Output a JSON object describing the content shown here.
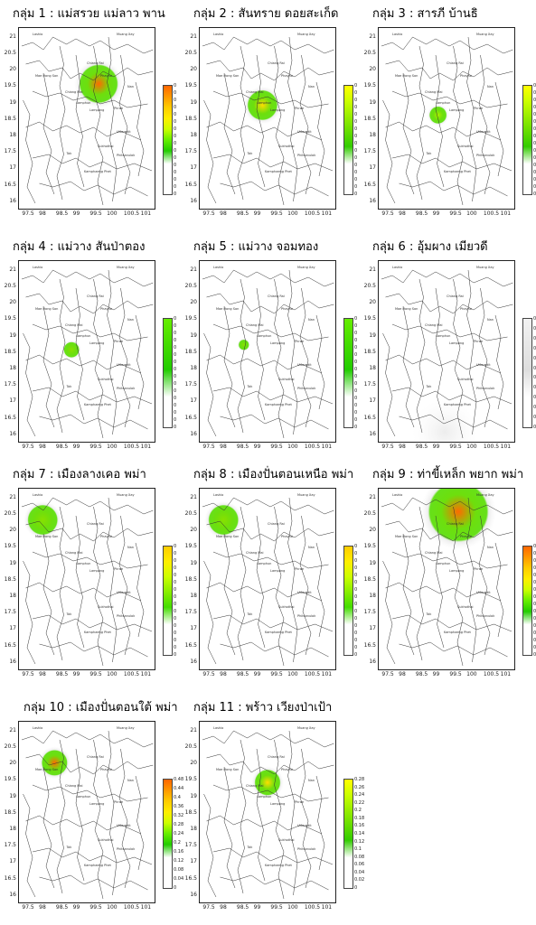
{
  "map_data": {
    "x_ticks": [
      "97.5",
      "98",
      "98.5",
      "99",
      "99.5",
      "100",
      "100.5",
      "101"
    ],
    "y_ticks": [
      "21",
      "20.5",
      "20",
      "19.5",
      "19",
      "18.5",
      "18",
      "17.5",
      "17",
      "16.5",
      "16"
    ],
    "x_range": [
      97.25,
      101.25
    ],
    "y_range": [
      15.8,
      21.3
    ],
    "place_names": [
      "Lashio",
      "Muang Xay",
      "Chiang Rai",
      "Phayao",
      "Nan",
      "Lampang",
      "Phrae",
      "Uttaradit",
      "Sukhothai",
      "Tak",
      "Kamphaeng Phet",
      "Phitsanulok",
      "Mae Hong Son",
      "Chiang Mai",
      "Lamphun"
    ],
    "panels": [
      {
        "title": "กลุ่ม 1 : แม่สรวย แม่ลาว พาน",
        "hotspot": {
          "lon": 99.6,
          "lat": 19.6,
          "radius_deg": 0.45
        },
        "peak": "orange",
        "cbar_colors": [
          "#ff6600",
          "#ff9900",
          "#ffcc00",
          "#ffee00",
          "#ccff00",
          "#66ee00",
          "#22cc00"
        ],
        "cbar_labels": [
          "0",
          "0",
          "0",
          "0",
          "0",
          "0",
          "0",
          "0",
          "0",
          "0",
          "0",
          "0",
          "0",
          "0",
          "0",
          "0"
        ]
      },
      {
        "title": "กลุ่ม 2 : สันทราย ดอยสะเก็ด",
        "hotspot": {
          "lon": 99.1,
          "lat": 18.95,
          "radius_deg": 0.35
        },
        "peak": "yellow",
        "cbar_colors": [
          "#ffff00",
          "#ccff00",
          "#99ee00",
          "#66dd00",
          "#33cc00"
        ],
        "cbar_labels": [
          "0",
          "0",
          "0",
          "0",
          "0",
          "0",
          "0",
          "0",
          "0",
          "0",
          "0",
          "0",
          "0",
          "0",
          "0",
          "0"
        ]
      },
      {
        "title": "กลุ่ม 3 : สารภี บ้านธิ",
        "hotspot": {
          "lon": 99.0,
          "lat": 18.65,
          "radius_deg": 0.2
        },
        "peak": "lime",
        "cbar_colors": [
          "#ffff00",
          "#ccff00",
          "#99ee00",
          "#66dd00",
          "#33cc00"
        ],
        "cbar_labels": [
          "0",
          "0",
          "0",
          "0",
          "0",
          "0",
          "0",
          "0",
          "0",
          "0",
          "0",
          "0",
          "0",
          "0",
          "0",
          "0"
        ]
      },
      {
        "title": "กลุ่ม 4 : แม่วาง สันป่าตอง",
        "hotspot": {
          "lon": 98.8,
          "lat": 18.6,
          "radius_deg": 0.18
        },
        "peak": "green",
        "cbar_colors": [
          "#66ee00",
          "#44dd00",
          "#22cc00"
        ],
        "cbar_labels": [
          "0",
          "0",
          "0",
          "0",
          "0",
          "0",
          "0",
          "0",
          "0",
          "0",
          "0",
          "0",
          "0",
          "0",
          "0",
          "0"
        ]
      },
      {
        "title": "กลุ่ม 5 : แม่วาง จอมทอง",
        "hotspot": {
          "lon": 98.55,
          "lat": 18.75,
          "radius_deg": 0.12
        },
        "peak": "green",
        "cbar_colors": [
          "#66ee00",
          "#44dd00",
          "#22cc00"
        ],
        "cbar_labels": [
          "0",
          "0",
          "0",
          "0",
          "0",
          "0",
          "0",
          "0",
          "0",
          "0",
          "0",
          "0",
          "0",
          "0",
          "0",
          "0"
        ]
      },
      {
        "title": "กลุ่ม 6 : อุ้มผาง เมียวดี",
        "hotspot": {
          "lon": 99.2,
          "lat": 16.1,
          "radius_deg": 0.6
        },
        "peak": "none",
        "cbar_colors": [
          "#f2f2f2",
          "#e8e8e8",
          "#dddddd"
        ],
        "cbar_labels": [
          "0.0",
          "0.0",
          "0.0",
          "0.0",
          "0.0",
          "0.0",
          "0.0",
          "0.0",
          "0.0",
          "0.0",
          "0.0",
          "0.0"
        ]
      },
      {
        "title": "กลุ่ม 7 : เมืองลางเคอ พม่า",
        "hotspot": {
          "lon": 97.95,
          "lat": 20.35,
          "radius_deg": 0.35
        },
        "peak": "green",
        "cbar_colors": [
          "#ffcc00",
          "#ffee00",
          "#ccff00",
          "#88ee00",
          "#44dd00"
        ],
        "cbar_labels": [
          "0",
          "0",
          "0",
          "0",
          "0",
          "0",
          "0",
          "0",
          "0",
          "0",
          "0",
          "0",
          "0",
          "0",
          "0",
          "0"
        ]
      },
      {
        "title": "กลุ่ม 8 : เมืองปั่นตอนเหนือ พม่า",
        "hotspot": {
          "lon": 97.95,
          "lat": 20.35,
          "radius_deg": 0.35
        },
        "peak": "green",
        "cbar_colors": [
          "#ffcc00",
          "#ffee00",
          "#ccff00",
          "#88ee00",
          "#44dd00"
        ],
        "cbar_labels": [
          "0",
          "0",
          "0",
          "0",
          "0",
          "0",
          "0",
          "0",
          "0",
          "0",
          "0",
          "0",
          "0",
          "0",
          "0",
          "0"
        ]
      },
      {
        "title": "กลุ่ม 9 : ท่าขี้เหล็ก พยาก พม่า",
        "hotspot": {
          "lon": 99.6,
          "lat": 20.6,
          "radius_deg": 0.7
        },
        "peak": "orange",
        "cbar_colors": [
          "#ff6600",
          "#ff9900",
          "#ffcc00",
          "#ffee00",
          "#ccff00",
          "#66ee00",
          "#22cc00"
        ],
        "cbar_labels": [
          "0",
          "0",
          "0",
          "0",
          "0",
          "0",
          "0",
          "0",
          "0",
          "0",
          "0",
          "0",
          "0",
          "0",
          "0",
          "0"
        ]
      },
      {
        "title": "กลุ่ม 10 : เมืองปั่นตอนใต้ พม่า",
        "hotspot": {
          "lon": 98.3,
          "lat": 20.05,
          "radius_deg": 0.3
        },
        "peak": "orange",
        "cbar_colors": [
          "#ff6600",
          "#ff9900",
          "#ffcc00",
          "#ffee00",
          "#ccff00",
          "#66ee00",
          "#22cc00"
        ],
        "cbar_labels": [
          "0.48",
          "0.44",
          "0.4",
          "0.36",
          "0.32",
          "0.28",
          "0.24",
          "0.2",
          "0.16",
          "0.12",
          "0.08",
          "0.04",
          "0"
        ]
      },
      {
        "title": "กลุ่ม 11 : พร้าว เวียงป่าเป้า",
        "hotspot": {
          "lon": 99.25,
          "lat": 19.45,
          "radius_deg": 0.3
        },
        "peak": "yellow",
        "cbar_colors": [
          "#ffff00",
          "#ccff00",
          "#99ee00",
          "#66dd00",
          "#33cc00"
        ],
        "cbar_labels": [
          "0.28",
          "0.26",
          "0.24",
          "0.22",
          "0.2",
          "0.18",
          "0.16",
          "0.14",
          "0.12",
          "0.1",
          "0.08",
          "0.06",
          "0.04",
          "0.02",
          "0"
        ]
      }
    ]
  }
}
